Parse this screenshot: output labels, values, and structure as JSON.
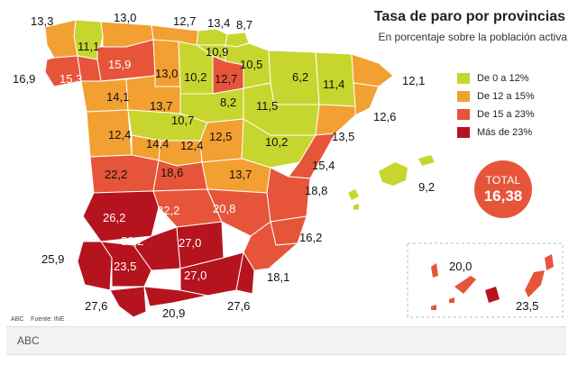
{
  "title": "Tasa de paro por provincias",
  "subtitle": "En porcentaje sobre la población activa",
  "source": "ABC    Fuente: INE",
  "footer": "ABC",
  "total": {
    "label": "TOTAL",
    "value": "16,38"
  },
  "colors": {
    "low": "#c7d62e",
    "mid": "#f2a031",
    "high": "#e6553a",
    "very_high": "#b5141f",
    "island_accent": "#b5141f"
  },
  "legend": [
    {
      "label": "De 0 a 12%",
      "color": "#c7d62e"
    },
    {
      "label": "De 12 a 15%",
      "color": "#f2a031"
    },
    {
      "label": "De 15 a 23%",
      "color": "#e6553a"
    },
    {
      "label": "Más de 23%",
      "color": "#b5141f"
    }
  ],
  "values": {
    "lugo": "11,1",
    "coruna_coast": "13,3",
    "asturias_coast": "13,0",
    "cantabria_coast": "12,7",
    "vizcaya_coast": "13,4",
    "guipuzcoa_coast": "8,7",
    "pontevedra_coast": "16,9",
    "pontevedra": "15,3",
    "leon": "15,9",
    "palencia": "13,0",
    "burgos": "10,2",
    "alava": "10,9",
    "navarra": "10,5",
    "larioja": "12,7",
    "huesca": "6,2",
    "lleida": "11,4",
    "girona_coast": "12,1",
    "barcelona_coast": "12,6",
    "zamora": "14,1",
    "valladolid": "13,7",
    "soria": "8,2",
    "zaragoza": "11,5",
    "segovia": "10,7",
    "salamanca": "12,4",
    "avila": "14,4",
    "madrid": "12,4",
    "guadalajara": "12,5",
    "teruel": "10,2",
    "tarragona_coast": "13,5",
    "caceres": "22,2",
    "toledo": "18,6",
    "cuenca": "13,7",
    "castellon_coast": "15,4",
    "valencia_coast": "18,8",
    "baleares_coast": "9,2",
    "badajoz": "26,2",
    "ciudadreal": "22,2",
    "albacete": "20,8",
    "alicante_coast": "16,2",
    "huelva_coast": "25,9",
    "cordoba": "30,2",
    "jaen": "27,0",
    "sevilla": "23,5",
    "granada": "27,0",
    "murcia_coast": "18,1",
    "cadiz_coast": "27,6",
    "malaga_coast": "20,9",
    "almeria_coast": "27,6",
    "laspalmas": "20,0",
    "tenerife": "23,5"
  }
}
